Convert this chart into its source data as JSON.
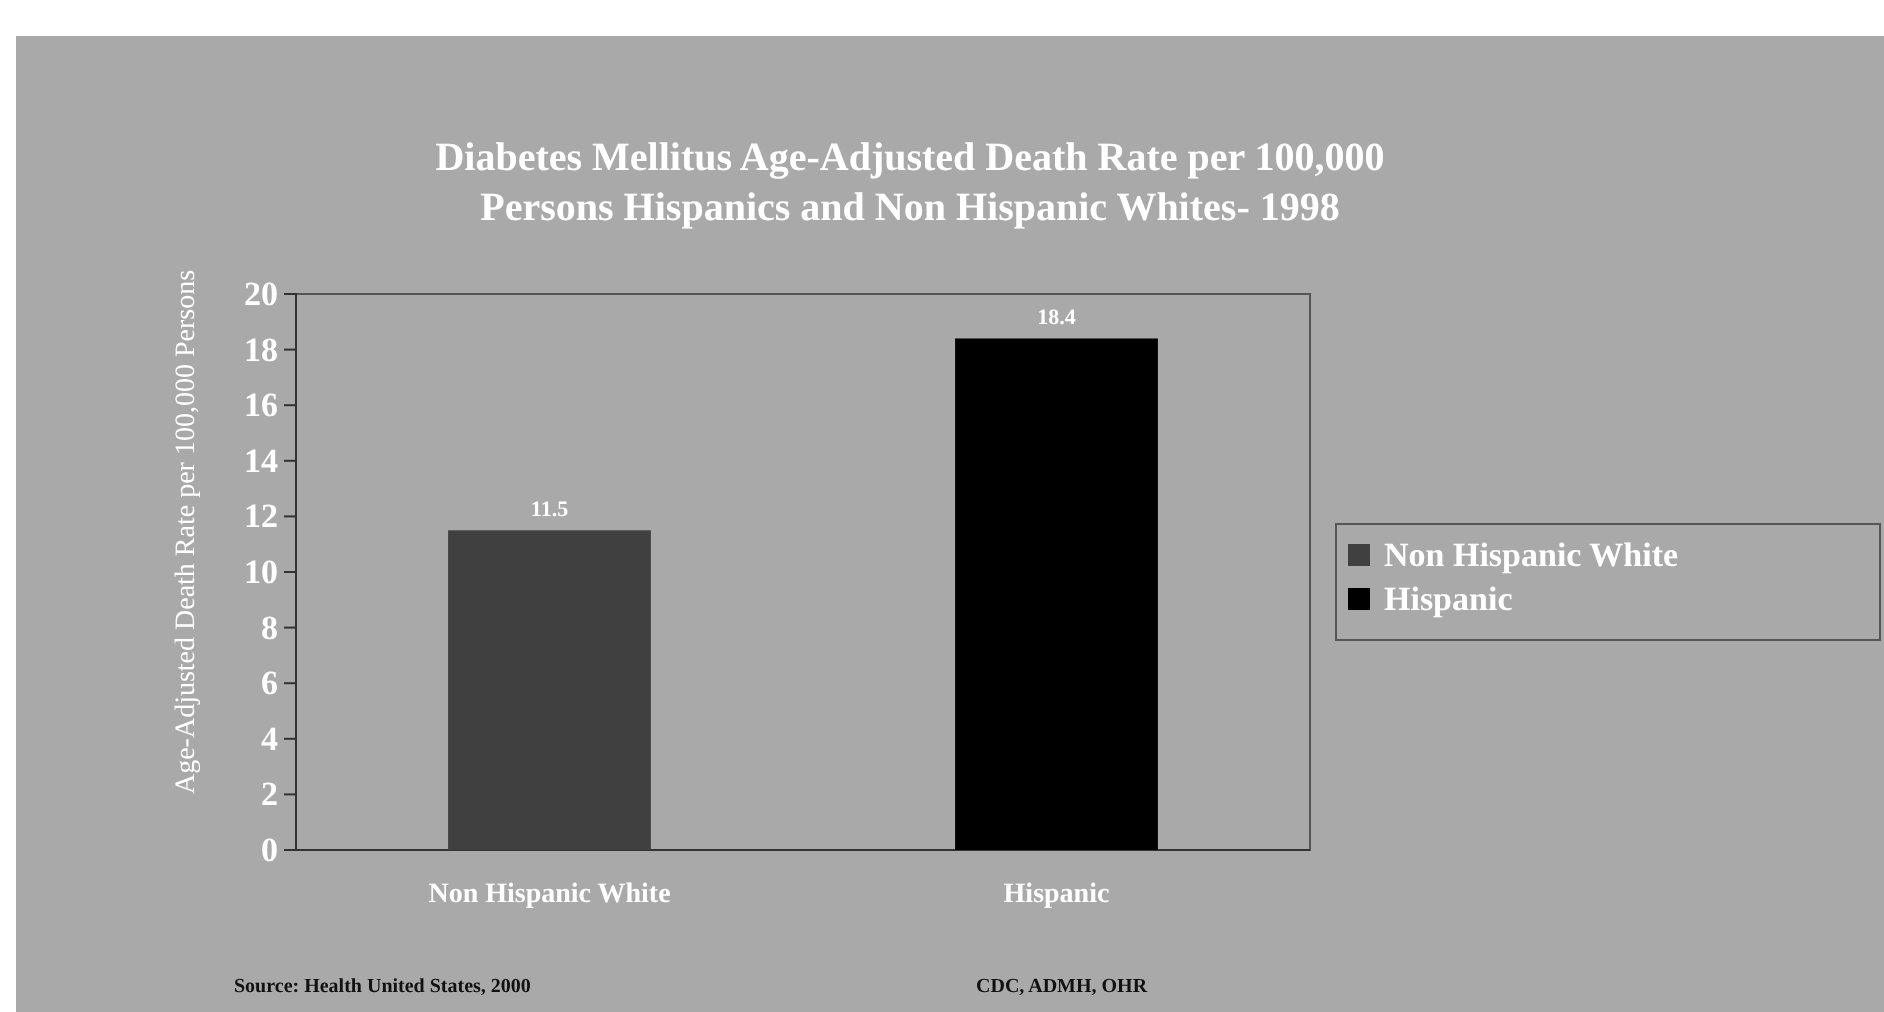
{
  "chart_data": {
    "type": "bar",
    "title": "Diabetes Mellitus Age-Adjusted Death Rate per 100,000 Persons Hispanics and Non Hispanic Whites- 1998",
    "ylabel": "Age-Adjusted Death Rate per 100,000 Persons",
    "categories": [
      "Non Hispanic White",
      "Hispanic"
    ],
    "series": [
      {
        "name": "Non Hispanic White",
        "color": "#404040",
        "values": [
          11.5,
          null
        ]
      },
      {
        "name": "Hispanic",
        "color": "#000000",
        "values": [
          null,
          18.4
        ]
      }
    ],
    "ylim": [
      0,
      20
    ],
    "yticks": [
      0,
      2,
      4,
      6,
      8,
      10,
      12,
      14,
      16,
      18,
      20
    ],
    "data_labels": true,
    "legend": "right",
    "annotations": [
      "Source: Health United States, 2000",
      "CDC, ADMH, OHR"
    ]
  }
}
